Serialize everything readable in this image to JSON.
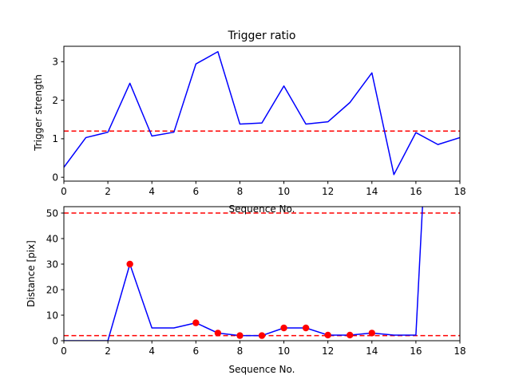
{
  "chart_data": [
    {
      "type": "line",
      "title": "Trigger ratio",
      "xlabel": "Sequence No.",
      "ylabel": "Trigger strength",
      "xlim": [
        0,
        18
      ],
      "ylim": [
        -0.1,
        3.4
      ],
      "xticks": [
        "0",
        "2",
        "4",
        "6",
        "8",
        "10",
        "12",
        "14",
        "16",
        "18"
      ],
      "yticks": [
        "0",
        "1",
        "2",
        "3"
      ],
      "grid": false,
      "x": [
        0,
        1,
        2,
        3,
        4,
        5,
        6,
        7,
        8,
        9,
        10,
        11,
        12,
        13,
        14,
        15,
        16,
        17,
        18
      ],
      "series": [
        {
          "values": [
            0.26,
            1.03,
            1.17,
            2.44,
            1.07,
            1.17,
            2.94,
            3.26,
            1.38,
            1.41,
            2.37,
            1.38,
            1.44,
            1.94,
            2.71,
            0.07,
            1.16,
            0.85,
            1.03
          ],
          "color": "#0000ff"
        }
      ],
      "hlines": [
        {
          "y": 1.2,
          "color": "#ff0000",
          "style": "dashed"
        }
      ]
    },
    {
      "type": "line",
      "title": "",
      "xlabel": "Sequence No.",
      "ylabel": "Distance [pix]",
      "xlim": [
        0,
        18
      ],
      "ylim": [
        0,
        52.5
      ],
      "xticks": [
        "0",
        "2",
        "4",
        "6",
        "8",
        "10",
        "12",
        "14",
        "16",
        "18"
      ],
      "yticks": [
        "0",
        "10",
        "20",
        "30",
        "40",
        "50"
      ],
      "grid": false,
      "x": [
        0,
        1,
        2,
        3,
        4,
        5,
        6,
        7,
        8,
        9,
        10,
        11,
        12,
        13,
        14,
        15,
        16,
        16.3
      ],
      "series": [
        {
          "values": [
            0,
            0,
            0,
            30,
            5,
            5,
            7,
            3,
            2,
            2,
            5,
            5,
            2.2,
            2.2,
            3,
            2.2,
            2.2,
            52.5
          ],
          "color": "#0000ff"
        }
      ],
      "markers": {
        "x": [
          3,
          6,
          7,
          8,
          9,
          10,
          11,
          12,
          13,
          14
        ],
        "y": [
          30,
          7,
          3,
          2,
          2,
          5,
          5,
          2.2,
          2.2,
          3
        ],
        "color": "#ff0000"
      },
      "hlines": [
        {
          "y": 50,
          "color": "#ff0000",
          "style": "dashed"
        },
        {
          "y": 2,
          "color": "#ff0000",
          "style": "dashed"
        }
      ]
    }
  ]
}
